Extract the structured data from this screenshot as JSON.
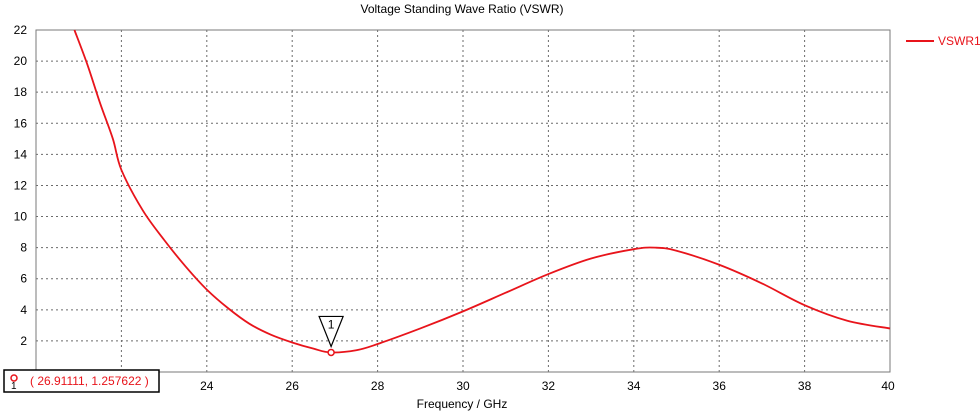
{
  "chart_data": {
    "type": "line",
    "title": "Voltage Standing Wave Ratio (VSWR)",
    "xlabel": "Frequency / GHz",
    "ylabel": "",
    "xlim": [
      20,
      40
    ],
    "ylim": [
      0,
      22
    ],
    "x_ticks": [
      "24",
      "26",
      "28",
      "30",
      "32",
      "34",
      "36",
      "38",
      "40"
    ],
    "y_ticks": [
      "2",
      "4",
      "6",
      "8",
      "10",
      "12",
      "14",
      "16",
      "18",
      "20",
      "22"
    ],
    "grid": true,
    "legend_position": "top-right",
    "series": [
      {
        "name": "VSWR1",
        "color": "#e8141b",
        "x": [
          20.9,
          21.2,
          21.5,
          21.8,
          22.0,
          22.5,
          23.0,
          23.5,
          24.0,
          24.5,
          25.0,
          25.5,
          26.0,
          26.5,
          26.9,
          27.5,
          28.0,
          29.0,
          30.0,
          31.0,
          32.0,
          33.0,
          34.0,
          34.5,
          35.0,
          36.0,
          37.0,
          38.0,
          39.0,
          40.0
        ],
        "y": [
          22.0,
          19.8,
          17.3,
          15.0,
          13.0,
          10.4,
          8.5,
          6.8,
          5.3,
          4.1,
          3.1,
          2.4,
          1.9,
          1.5,
          1.26,
          1.4,
          1.8,
          2.8,
          3.9,
          5.1,
          6.3,
          7.3,
          7.9,
          8.0,
          7.8,
          6.9,
          5.7,
          4.3,
          3.3,
          2.8
        ]
      }
    ],
    "marker": {
      "id": "1",
      "x": 26.91111,
      "y": 1.257622,
      "readout": "( 26.91111, 1.257622 )"
    }
  }
}
